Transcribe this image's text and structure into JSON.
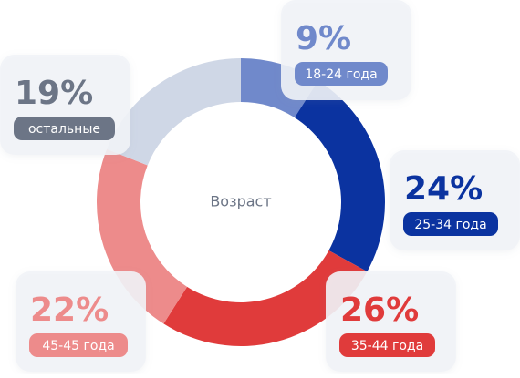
{
  "chart_data": {
    "type": "donut",
    "center_label": "Возраст",
    "categories": [
      "18-24 года",
      "25-34 года",
      "35-44 года",
      "45-45 года",
      "остальные"
    ],
    "values": [
      9,
      24,
      26,
      22,
      19
    ],
    "value_labels": [
      "9%",
      "24%",
      "26%",
      "22%",
      "19%"
    ],
    "colors": [
      "#7089cb",
      "#0b33a0",
      "#e03b3b",
      "#ed8b8b",
      "#cfd7e6"
    ],
    "label_colors": [
      "#7089cb",
      "#0b33a0",
      "#e03b3b",
      "#ed8b8b",
      "#6c7586"
    ]
  }
}
